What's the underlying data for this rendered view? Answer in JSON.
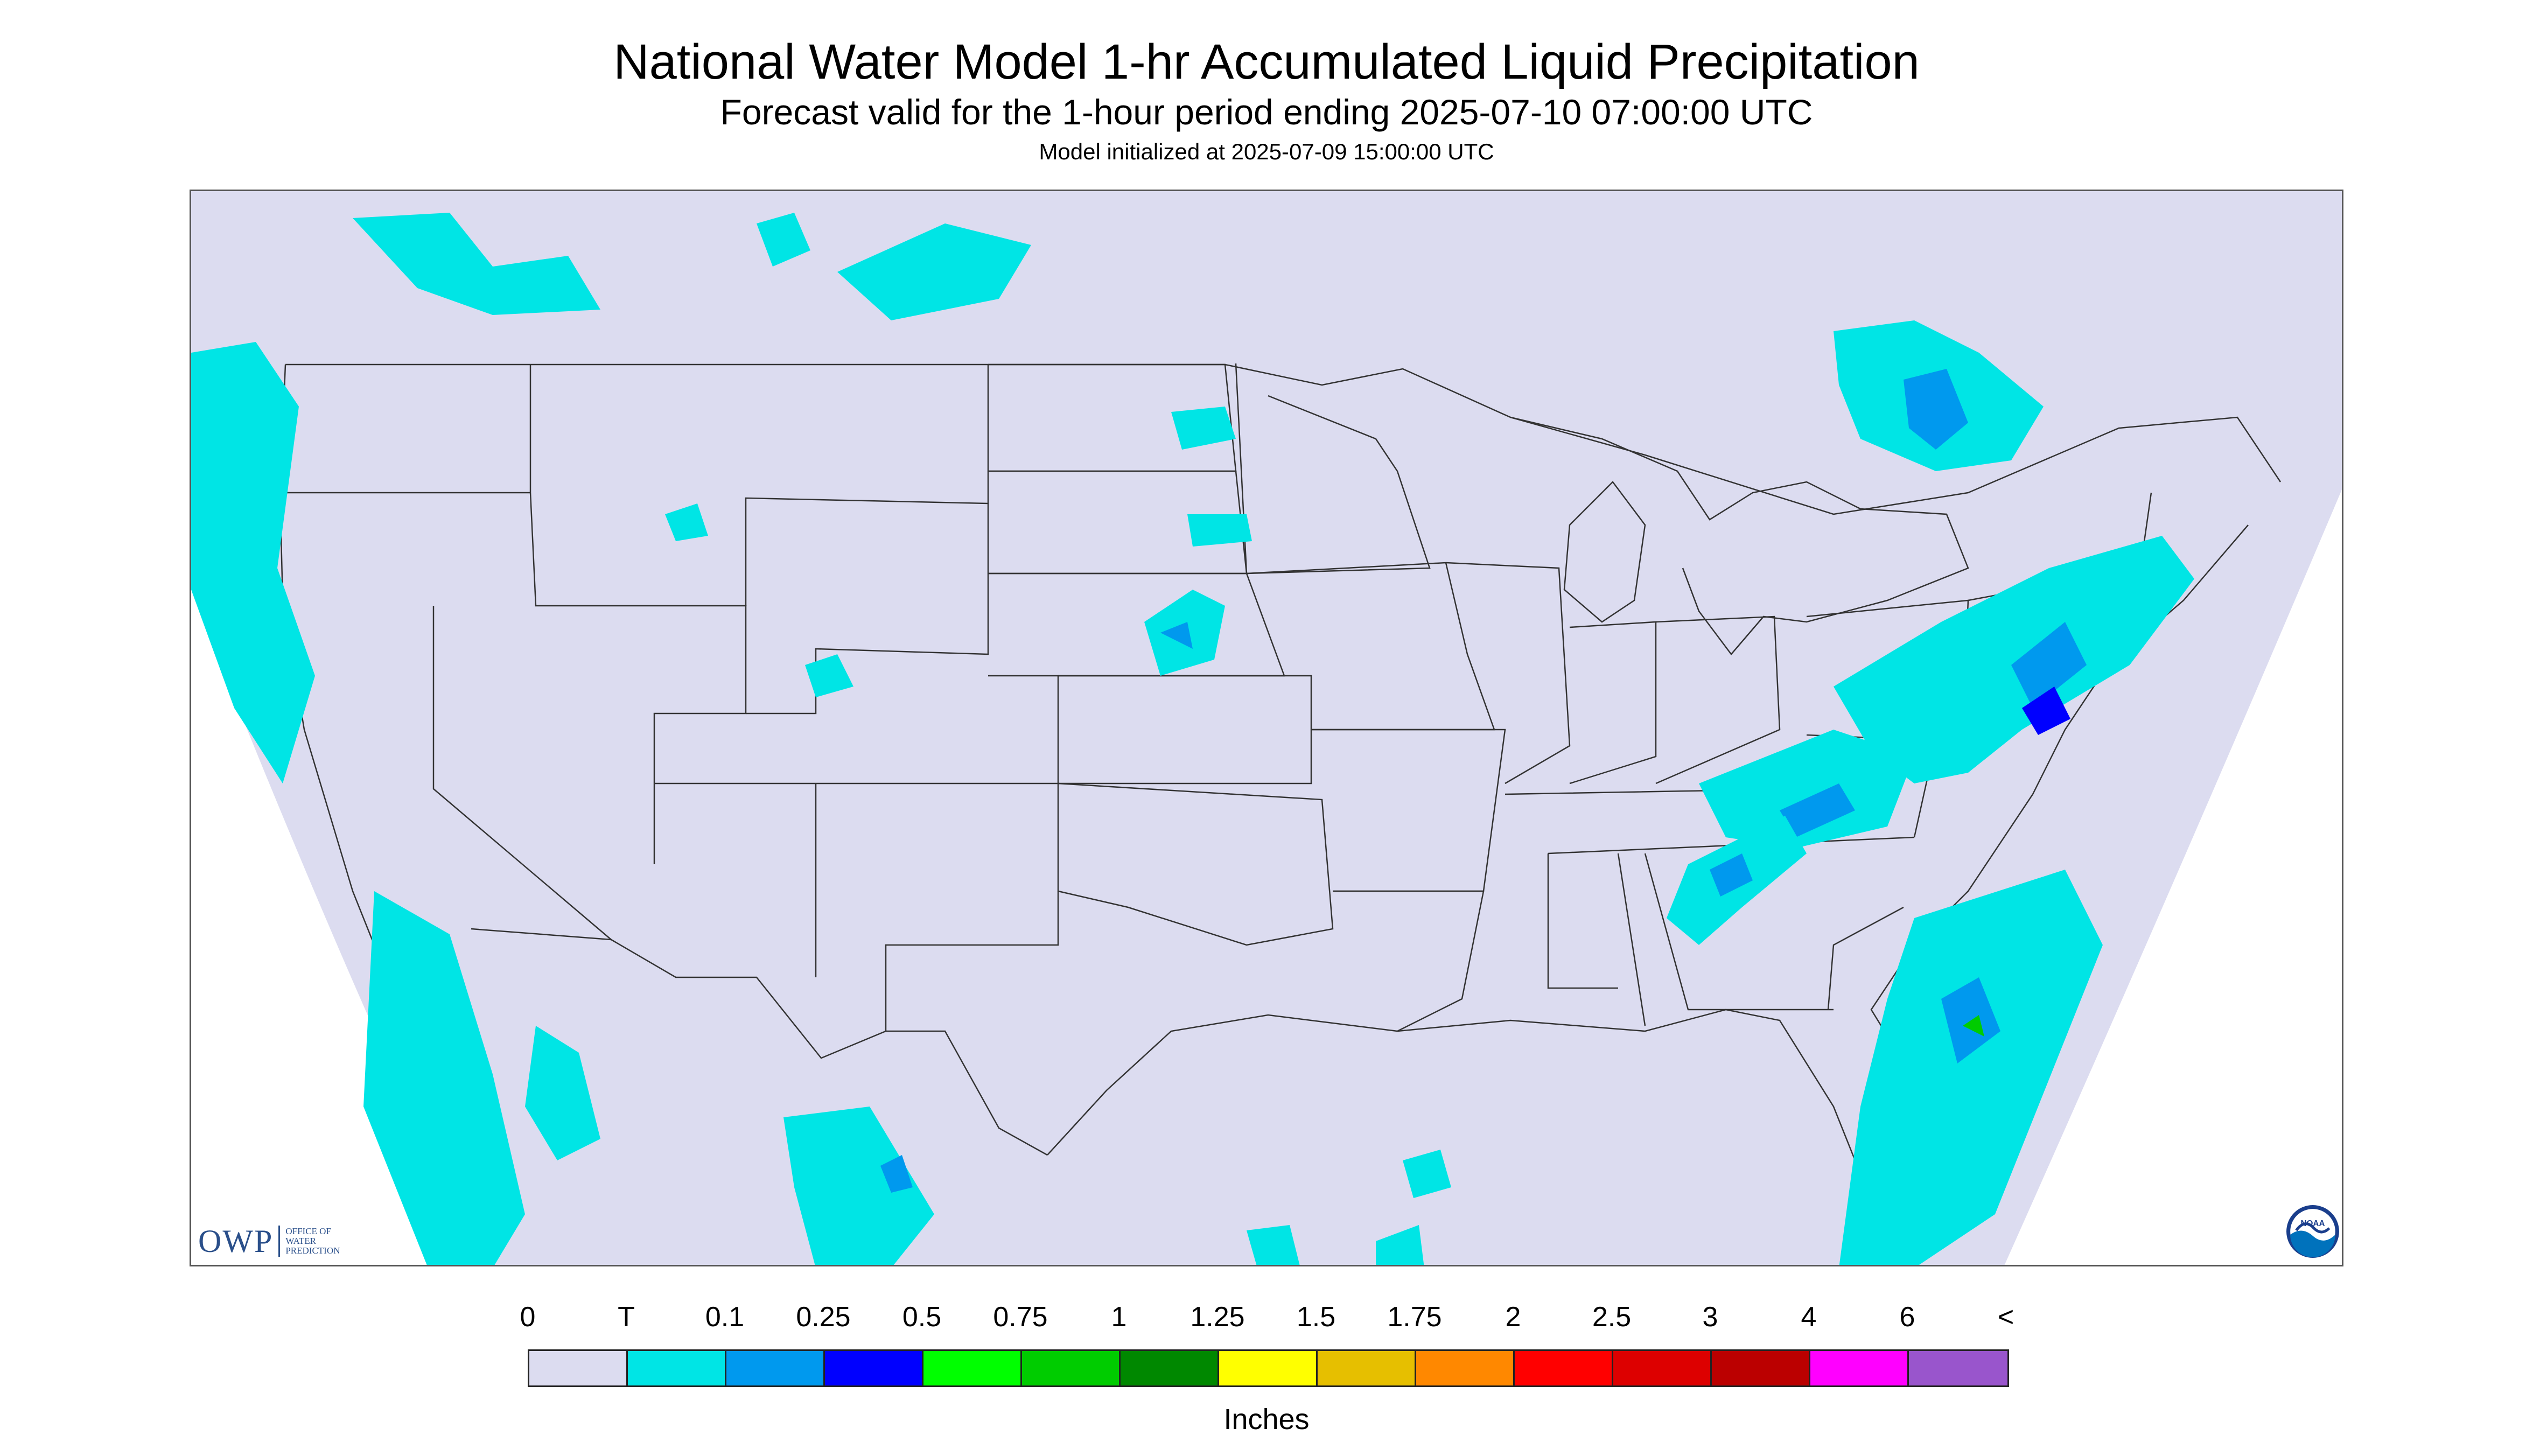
{
  "header": {
    "title": "National Water Model 1-hr Accumulated Liquid Precipitation",
    "subtitle": "Forecast valid for the 1-hour period ending 2025-07-10 07:00:00 UTC",
    "init": "Model initialized at 2025-07-09 15:00:00 UTC"
  },
  "logos": {
    "owp_mark": "OWP",
    "owp_text": [
      "OFFICE OF",
      "WATER",
      "PREDICTION"
    ],
    "noaa_text": "NOAA"
  },
  "map": {
    "background_color": "#dcdcf0",
    "outside_color": "#ffffff",
    "boundary_color": "#333333",
    "precip_light_color": "#00e5e5",
    "precip_mid_color": "#0099ee",
    "precip_heavy_color": "#0000ff",
    "precip_green_color": "#00cc00"
  },
  "legend": {
    "labels": [
      "0",
      "T",
      "0.1",
      "0.25",
      "0.5",
      "0.75",
      "1",
      "1.25",
      "1.5",
      "1.75",
      "2",
      "2.5",
      "3",
      "4",
      "6",
      "<"
    ],
    "colors": [
      "#dcdcf0",
      "#00e5e5",
      "#0099ee",
      "#0000ff",
      "#00ff00",
      "#00cc00",
      "#008800",
      "#ffff00",
      "#e6bf00",
      "#ff8800",
      "#ff0000",
      "#dd0000",
      "#bb0000",
      "#ff00ff",
      "#9955cc"
    ],
    "units": "Inches"
  }
}
